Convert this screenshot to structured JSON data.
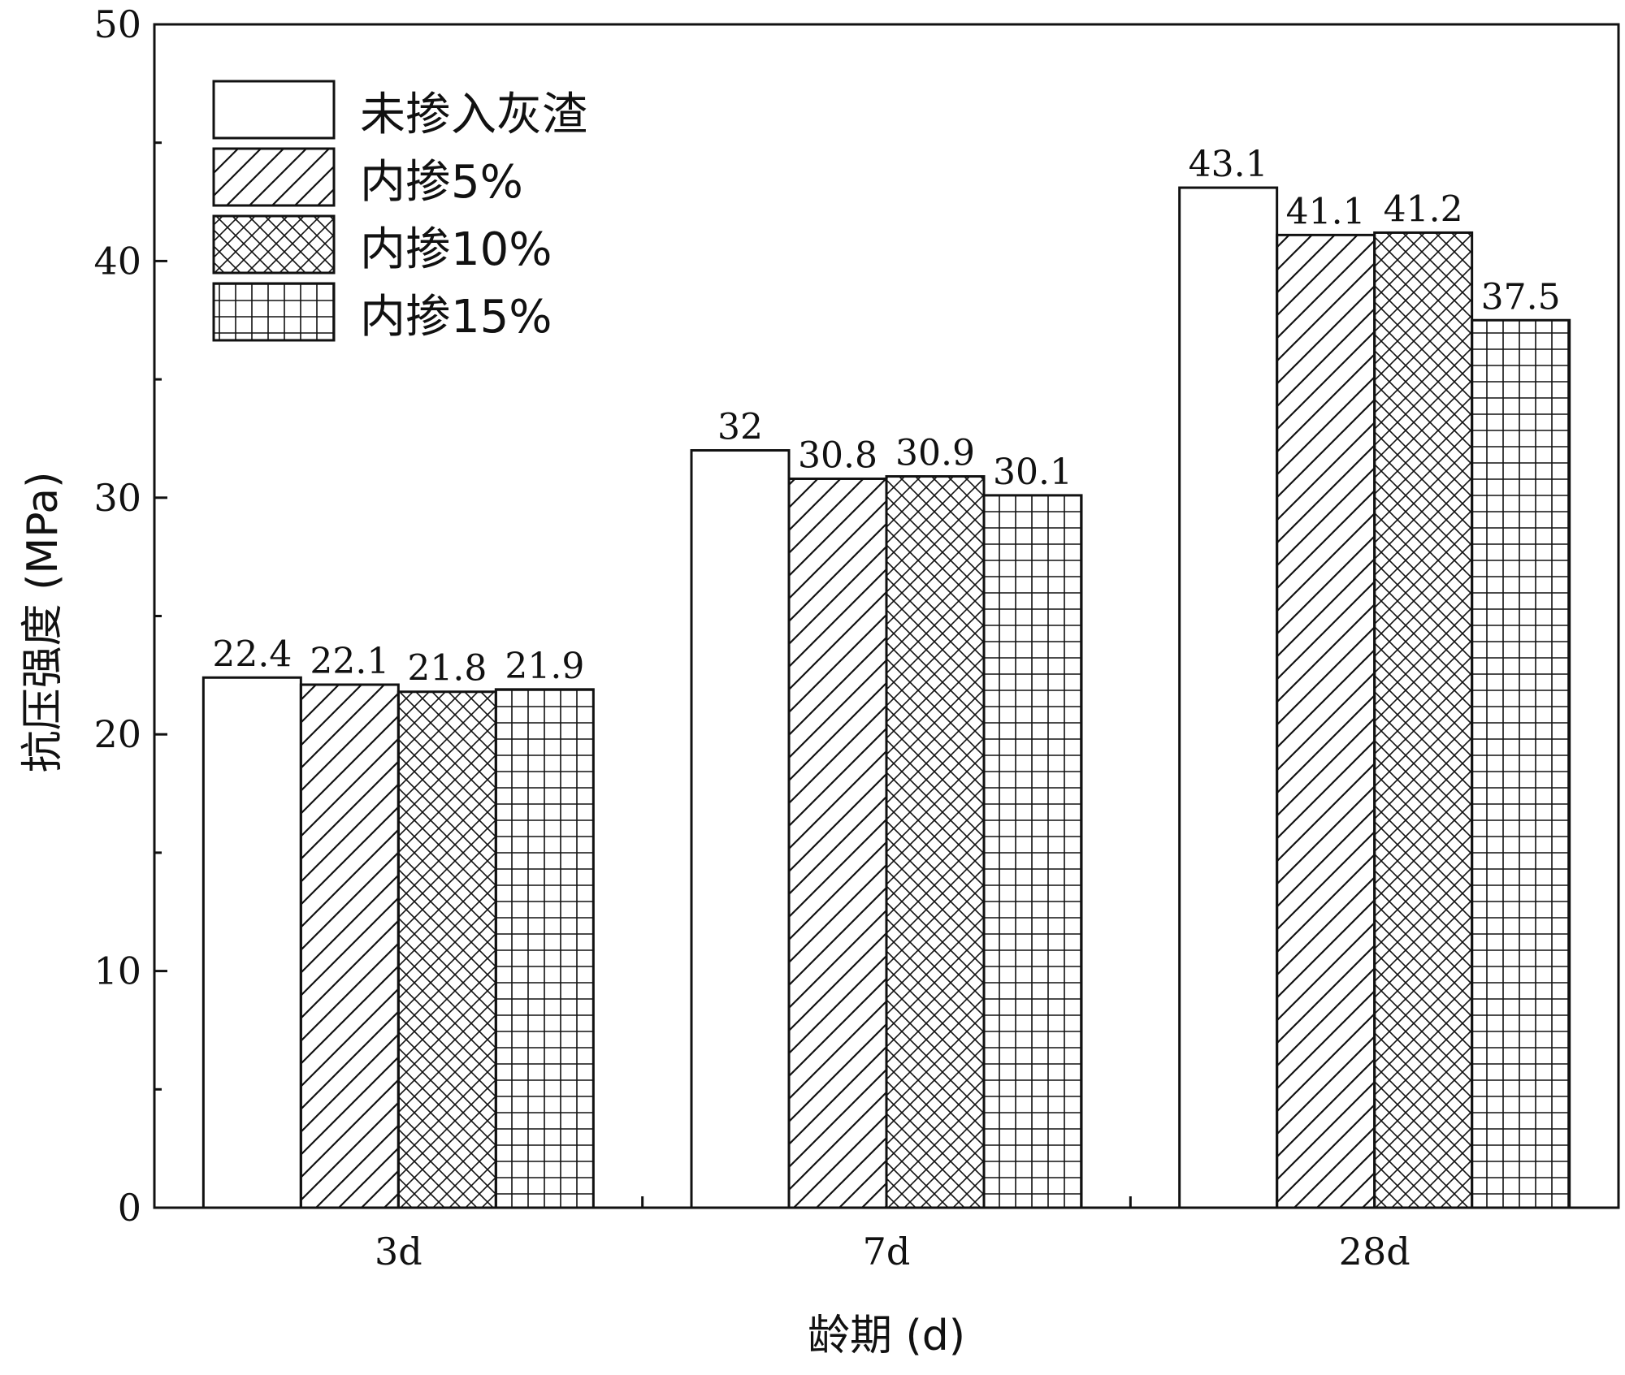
{
  "chart_data": {
    "type": "bar",
    "title": "",
    "xlabel": "龄期 (d)",
    "ylabel": "抗压强度 (MPa)",
    "ylim": [
      0,
      50
    ],
    "yticks": [
      0,
      10,
      20,
      30,
      40,
      50
    ],
    "categories": [
      "3d",
      "7d",
      "28d"
    ],
    "series": [
      {
        "name": "未掺入灰渣",
        "pattern": "none",
        "values": [
          22.4,
          32,
          43.1
        ],
        "labels": [
          "22.4",
          "32",
          "43.1"
        ]
      },
      {
        "name": "内掺5%",
        "pattern": "diagonal",
        "values": [
          22.1,
          30.8,
          41.1
        ],
        "labels": [
          "22.1",
          "30.8",
          "41.1"
        ]
      },
      {
        "name": "内掺10%",
        "pattern": "crosshatch",
        "values": [
          21.8,
          30.9,
          41.2
        ],
        "labels": [
          "21.8",
          "30.9",
          "41.2"
        ]
      },
      {
        "name": "内掺15%",
        "pattern": "grid",
        "values": [
          21.9,
          30.1,
          37.5
        ],
        "labels": [
          "21.9",
          "30.1",
          "37.5"
        ]
      }
    ],
    "legend_position": "top-left",
    "grid": false,
    "colors": {
      "stroke": "#111111",
      "fill": "#ffffff"
    }
  }
}
